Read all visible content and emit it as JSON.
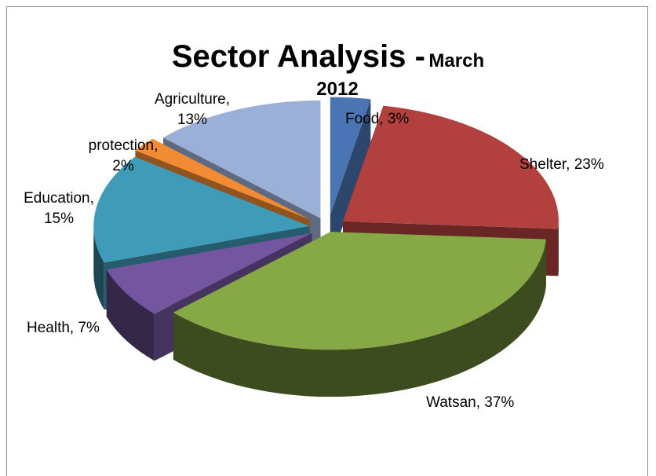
{
  "chart_data": {
    "type": "pie",
    "title": "Sector Analysis -",
    "subtitle": "March",
    "subtitle_line2": "2012",
    "style": "3d-exploded",
    "slices": [
      {
        "label": "Food, 3%",
        "category": "Food",
        "value": 3,
        "color": "#4a74b4"
      },
      {
        "label": "Shelter, 23%",
        "category": "Shelter",
        "value": 23,
        "color": "#b1403e"
      },
      {
        "label": "Watsan, 37%",
        "category": "Watsan",
        "value": 37,
        "color": "#86a845"
      },
      {
        "label": "Health, 7%",
        "category": "Health",
        "value": 7,
        "color": "#7456a0"
      },
      {
        "label": "Education, 15%",
        "category": "Education",
        "value": 15,
        "color": "#3f9bb8"
      },
      {
        "label": "protection, 2%",
        "category": "protection",
        "value": 2,
        "color": "#f28c34"
      },
      {
        "label": "Agriculture, 13%",
        "category": "Agriculture",
        "value": 13,
        "color": "#9bb0d8"
      }
    ]
  }
}
